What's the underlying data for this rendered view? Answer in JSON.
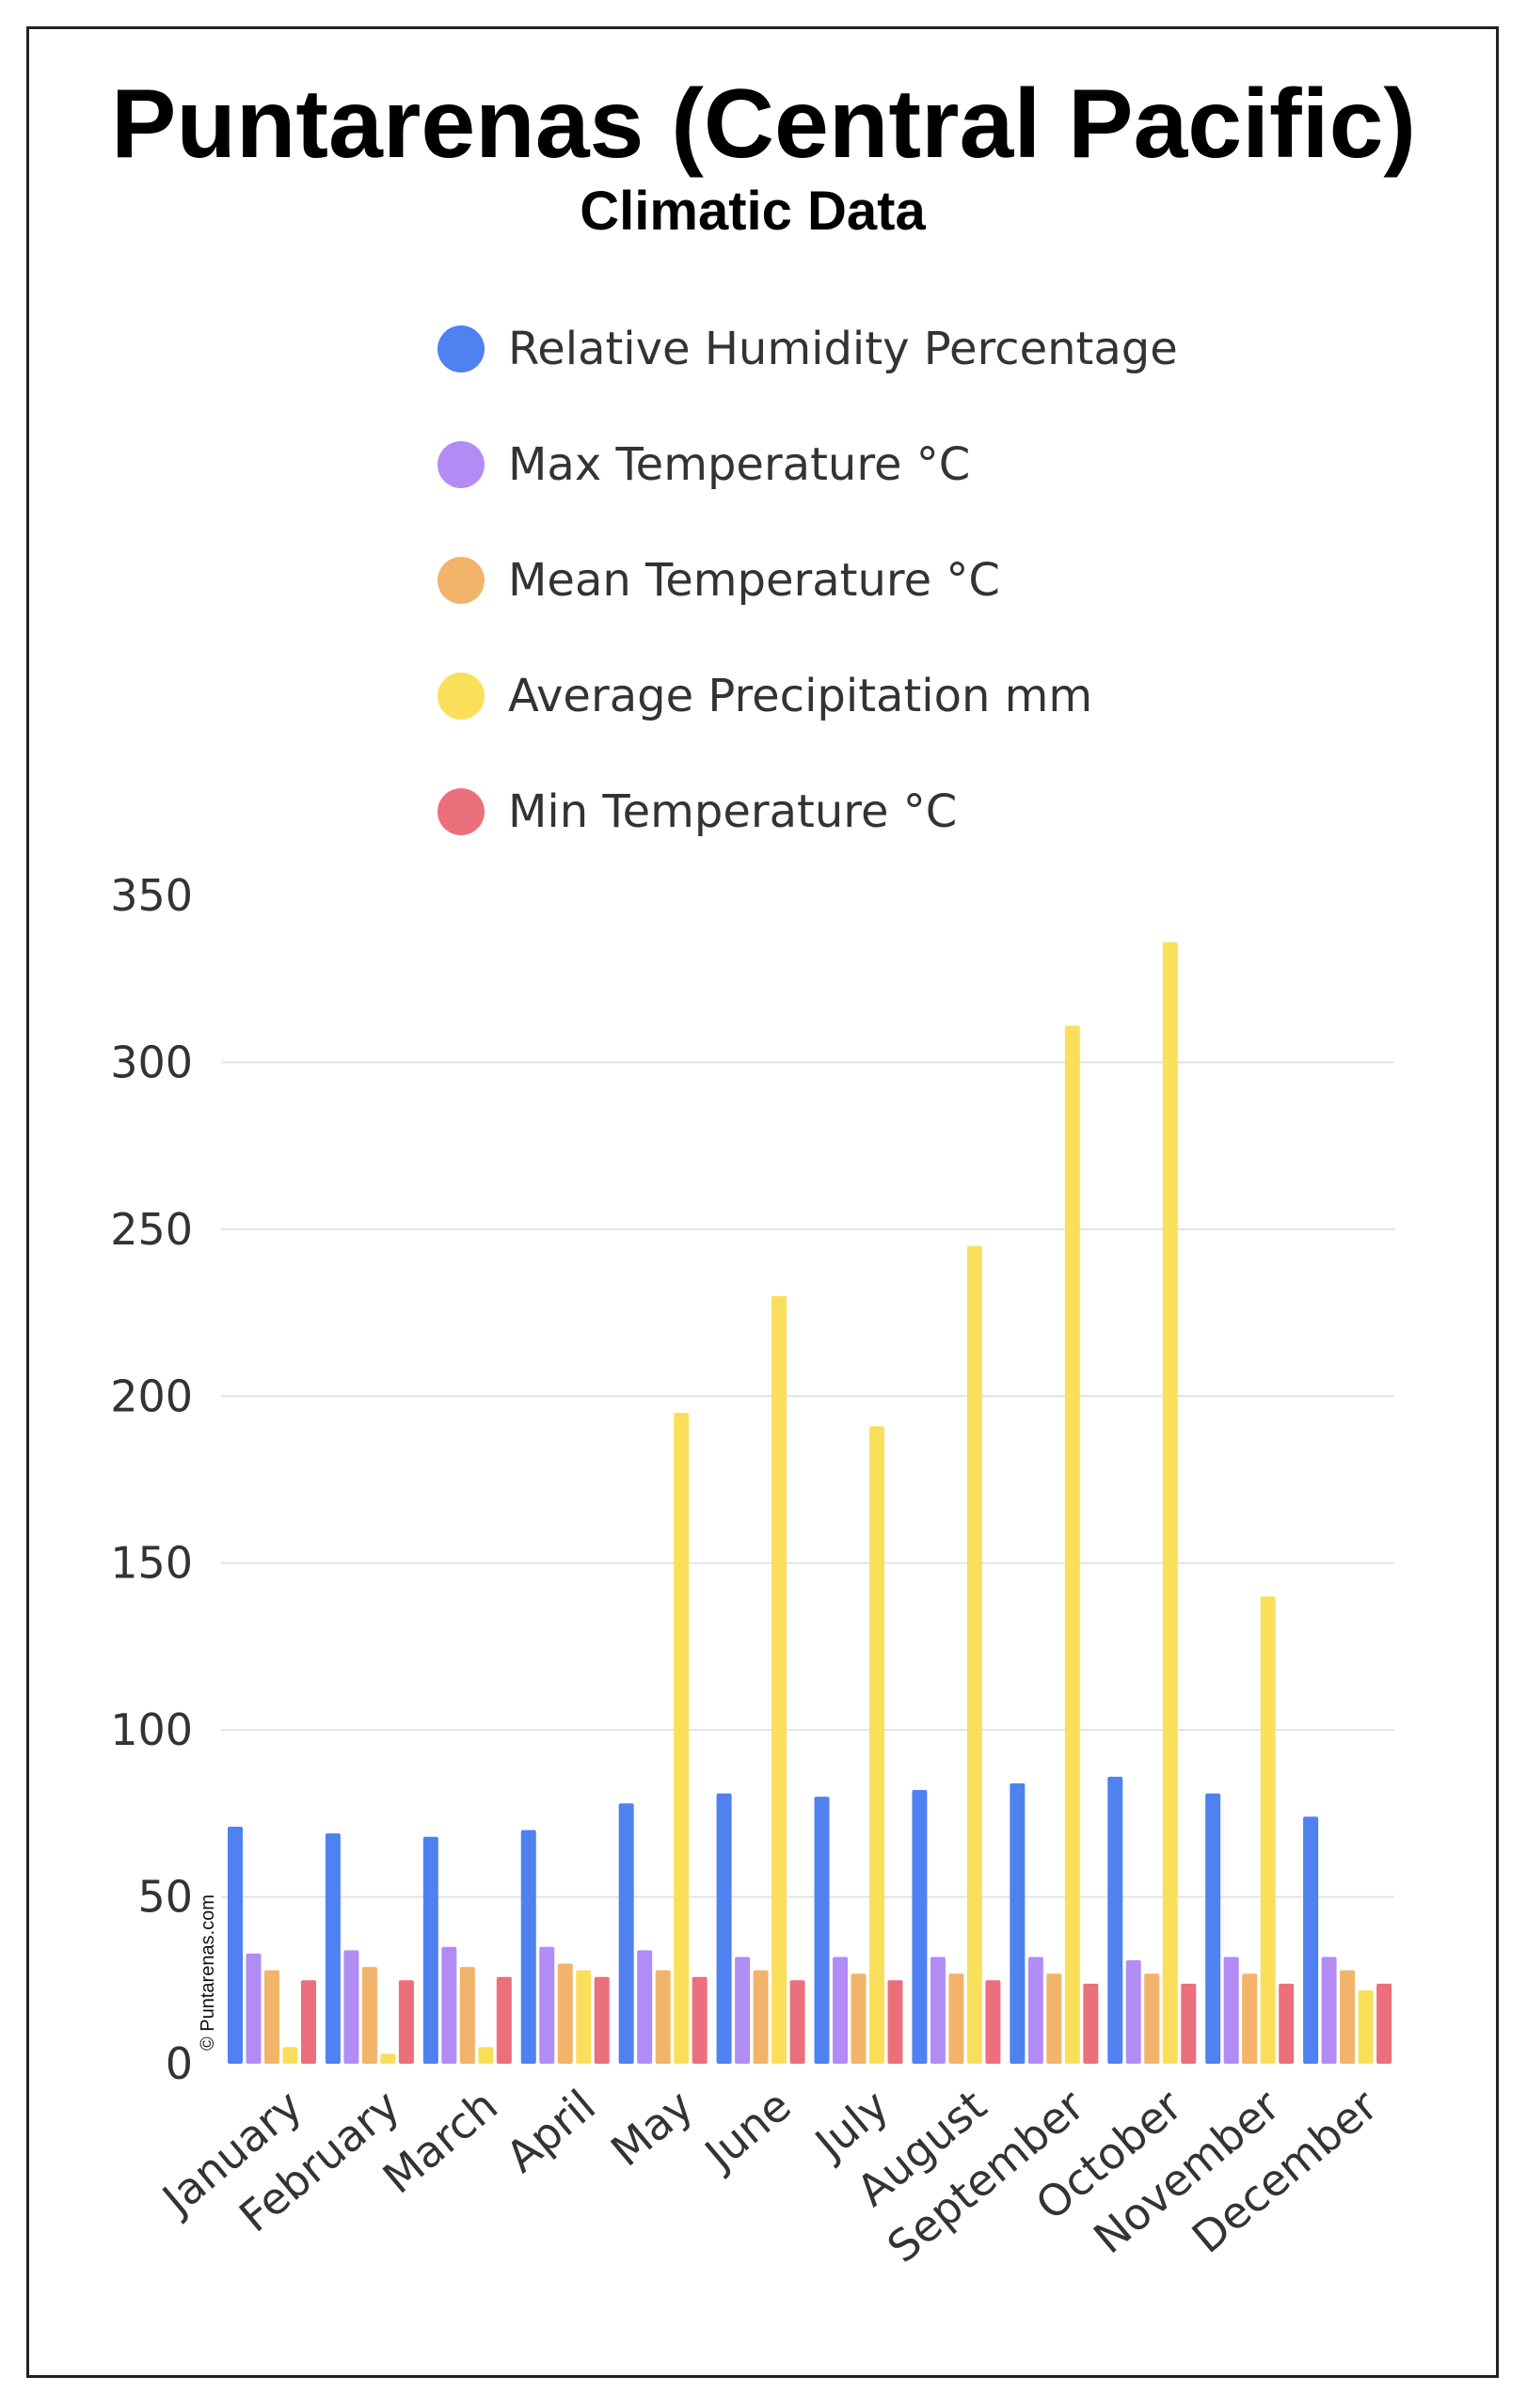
{
  "header": {
    "title": "Puntarenas (Central Pacific)",
    "subtitle": "Climatic Data"
  },
  "watermark": "© Puntarenas.com",
  "chart_data": {
    "type": "bar",
    "title": "Puntarenas (Central Pacific)",
    "subtitle": "Climatic Data",
    "xlabel": "",
    "ylabel": "",
    "ylim": [
      0,
      350
    ],
    "yticks": [
      0,
      50,
      100,
      150,
      200,
      250,
      300,
      350
    ],
    "grid": true,
    "legend_position": "top",
    "categories": [
      "January",
      "February",
      "March",
      "April",
      "May",
      "June",
      "July",
      "August",
      "September",
      "October",
      "November",
      "December"
    ],
    "series": [
      {
        "name": "Relative Humidity Percentage",
        "color": "#4F81F0",
        "values": [
          71,
          69,
          68,
          70,
          78,
          81,
          80,
          82,
          84,
          86,
          81,
          74
        ]
      },
      {
        "name": "Max Temperature °C",
        "color": "#B28CF5",
        "values": [
          33,
          34,
          35,
          35,
          34,
          32,
          32,
          32,
          32,
          31,
          32,
          32
        ]
      },
      {
        "name": "Mean Temperature °C",
        "color": "#F2B46A",
        "values": [
          28,
          29,
          29,
          30,
          28,
          28,
          27,
          27,
          27,
          27,
          27,
          28
        ]
      },
      {
        "name": "Average Precipitation mm",
        "color": "#FADF5A",
        "values": [
          5,
          3,
          5,
          28,
          195,
          230,
          191,
          245,
          311,
          336,
          140,
          22
        ]
      },
      {
        "name": "Min Temperature °C",
        "color": "#EC6F7C",
        "values": [
          25,
          25,
          26,
          26,
          26,
          25,
          25,
          25,
          24,
          24,
          24,
          24
        ]
      }
    ]
  }
}
